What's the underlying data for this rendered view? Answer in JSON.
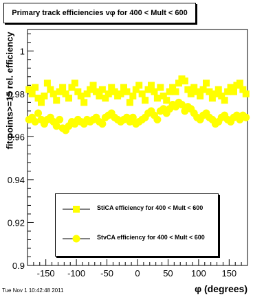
{
  "title": "Primary track efficiencies vφ for 400 < Mult < 600",
  "timestamp": "Tue Nov  1 10:42:48 2011",
  "chart_data": {
    "type": "scatter",
    "title": "Primary track efficiencies vφ for 400 < Mult < 600",
    "xlabel": "φ (degrees)",
    "ylabel": "fit points>=15 rel. efficiency",
    "xlim": [
      -180,
      180
    ],
    "ylim": [
      0.9,
      1.01
    ],
    "xticks": [
      -150,
      -100,
      -50,
      0,
      50,
      100,
      150
    ],
    "yticks": [
      0.9,
      0.92,
      0.94,
      0.96,
      0.98,
      1
    ],
    "ytick_labels": [
      "0.9",
      "0.92",
      "0.94",
      "0.96",
      "0.98",
      "1"
    ],
    "grid": false,
    "legend_position": "bottom-right",
    "marker_color": "#ffff00",
    "series": [
      {
        "name": "StiCA efficiency  for 400 < Mult < 600",
        "marker": "square",
        "x": [
          -177.5,
          -172.5,
          -167.5,
          -162.5,
          -157.5,
          -152.5,
          -147.5,
          -142.5,
          -137.5,
          -132.5,
          -127.5,
          -122.5,
          -117.5,
          -112.5,
          -107.5,
          -102.5,
          -97.5,
          -92.5,
          -87.5,
          -82.5,
          -77.5,
          -72.5,
          -67.5,
          -62.5,
          -57.5,
          -52.5,
          -47.5,
          -42.5,
          -37.5,
          -32.5,
          -27.5,
          -22.5,
          -17.5,
          -12.5,
          -7.5,
          -2.5,
          2.5,
          7.5,
          12.5,
          17.5,
          22.5,
          27.5,
          32.5,
          37.5,
          42.5,
          47.5,
          52.5,
          57.5,
          62.5,
          67.5,
          72.5,
          77.5,
          82.5,
          87.5,
          92.5,
          97.5,
          102.5,
          107.5,
          112.5,
          117.5,
          122.5,
          127.5,
          132.5,
          137.5,
          142.5,
          147.5,
          152.5,
          157.5,
          162.5,
          167.5,
          172.5,
          177.5
        ],
        "y": [
          0.982,
          0.98,
          0.983,
          0.978,
          0.976,
          0.979,
          0.985,
          0.982,
          0.98,
          0.977,
          0.981,
          0.983,
          0.98,
          0.978,
          0.983,
          0.985,
          0.981,
          0.979,
          0.976,
          0.98,
          0.982,
          0.984,
          0.981,
          0.979,
          0.982,
          0.978,
          0.98,
          0.983,
          0.981,
          0.979,
          0.98,
          0.983,
          0.981,
          0.976,
          0.979,
          0.982,
          0.984,
          0.98,
          0.977,
          0.982,
          0.984,
          0.981,
          0.978,
          0.983,
          0.979,
          0.977,
          0.981,
          0.983,
          0.981,
          0.985,
          0.987,
          0.986,
          0.982,
          0.98,
          0.983,
          0.981,
          0.979,
          0.982,
          0.985,
          0.981,
          0.978,
          0.98,
          0.982,
          0.979,
          0.977,
          0.981,
          0.983,
          0.981,
          0.984,
          0.985,
          0.982,
          0.98
        ]
      },
      {
        "name": "StvCA efficiency  for 400 < Mult < 600",
        "marker": "circle",
        "x": [
          -177.5,
          -172.5,
          -167.5,
          -162.5,
          -157.5,
          -152.5,
          -147.5,
          -142.5,
          -137.5,
          -132.5,
          -127.5,
          -122.5,
          -117.5,
          -112.5,
          -107.5,
          -102.5,
          -97.5,
          -92.5,
          -87.5,
          -82.5,
          -77.5,
          -72.5,
          -67.5,
          -62.5,
          -57.5,
          -52.5,
          -47.5,
          -42.5,
          -37.5,
          -32.5,
          -27.5,
          -22.5,
          -17.5,
          -12.5,
          -7.5,
          -2.5,
          2.5,
          7.5,
          12.5,
          17.5,
          22.5,
          27.5,
          32.5,
          37.5,
          42.5,
          47.5,
          52.5,
          57.5,
          62.5,
          67.5,
          72.5,
          77.5,
          82.5,
          87.5,
          92.5,
          97.5,
          102.5,
          107.5,
          112.5,
          117.5,
          122.5,
          127.5,
          132.5,
          137.5,
          142.5,
          147.5,
          152.5,
          157.5,
          162.5,
          167.5,
          172.5,
          177.5
        ],
        "y": [
          0.968,
          0.969,
          0.967,
          0.971,
          0.968,
          0.966,
          0.968,
          0.969,
          0.967,
          0.965,
          0.968,
          0.964,
          0.963,
          0.965,
          0.967,
          0.966,
          0.968,
          0.967,
          0.966,
          0.968,
          0.967,
          0.968,
          0.969,
          0.967,
          0.966,
          0.969,
          0.97,
          0.971,
          0.969,
          0.968,
          0.967,
          0.968,
          0.969,
          0.967,
          0.969,
          0.966,
          0.967,
          0.968,
          0.969,
          0.971,
          0.972,
          0.97,
          0.968,
          0.972,
          0.973,
          0.971,
          0.973,
          0.975,
          0.974,
          0.976,
          0.975,
          0.972,
          0.974,
          0.973,
          0.971,
          0.969,
          0.968,
          0.97,
          0.971,
          0.969,
          0.968,
          0.966,
          0.967,
          0.969,
          0.97,
          0.968,
          0.967,
          0.969,
          0.97,
          0.968,
          0.97,
          0.969
        ]
      }
    ]
  }
}
